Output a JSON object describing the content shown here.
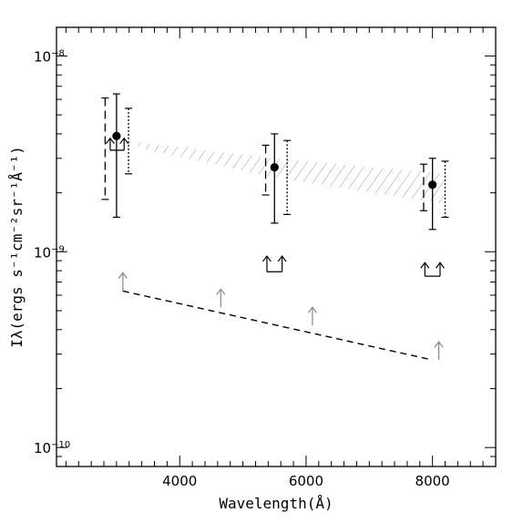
{
  "chart_data": {
    "type": "scatter",
    "title": "",
    "xlabel": "Wavelength(Å)",
    "ylabel": "Iλ(ergs s⁻¹cm⁻²sr⁻¹Å⁻¹)",
    "xlim": [
      2050,
      9000
    ],
    "ylim": [
      8e-11,
      1.4e-08
    ],
    "y_scale": "log",
    "grid": false,
    "legend": "none",
    "x_ticks": [
      {
        "value": 4000,
        "label": "4000"
      },
      {
        "value": 6000,
        "label": "6000"
      },
      {
        "value": 8000,
        "label": "8000"
      }
    ],
    "y_ticks": [
      {
        "value": 1e-08,
        "label": "10",
        "exp": "−8"
      },
      {
        "value": 1e-09,
        "label": "10",
        "exp": "−9"
      },
      {
        "value": 1e-10,
        "label": "10",
        "exp": "−10"
      }
    ],
    "series": [
      {
        "style": "filled-circle with solid error bar",
        "color": "#000000",
        "points": [
          {
            "x": 3000,
            "y": 3.9e-09,
            "ylow": 1.5e-09,
            "yhigh": 6.4e-09
          },
          {
            "x": 5500,
            "y": 2.7e-09,
            "ylow": 1.4e-09,
            "yhigh": 4e-09
          },
          {
            "x": 8000,
            "y": 2.2e-09,
            "ylow": 1.3e-09,
            "yhigh": 3e-09
          }
        ]
      },
      {
        "style": "dashed error bar",
        "color": "#000000",
        "points": [
          {
            "x": 2820,
            "ylow": 1.85e-09,
            "yhigh": 6.1e-09
          },
          {
            "x": 5360,
            "ylow": 1.95e-09,
            "yhigh": 3.5e-09
          },
          {
            "x": 7860,
            "ylow": 1.62e-09,
            "yhigh": 2.8e-09
          }
        ]
      },
      {
        "style": "dotted error bar",
        "color": "#000000",
        "points": [
          {
            "x": 3190,
            "ylow": 2.5e-09,
            "yhigh": 5.4e-09
          },
          {
            "x": 5700,
            "ylow": 1.55e-09,
            "yhigh": 3.7e-09
          },
          {
            "x": 8200,
            "ylow": 1.5e-09,
            "yhigh": 2.9e-09
          }
        ]
      },
      {
        "style": "lower-limit bracket (two upward arrows)",
        "color": "#000000",
        "points": [
          {
            "x1": 2900,
            "x2": 3120,
            "y": 3.3e-09,
            "y_arrow_tip": 3.8e-09
          },
          {
            "x1": 5380,
            "x2": 5620,
            "y": 7.9e-10,
            "y_arrow_tip": 9.5e-10
          },
          {
            "x1": 7880,
            "x2": 8120,
            "y": 7.5e-10,
            "y_arrow_tip": 8.8e-10
          }
        ]
      },
      {
        "style": "grey lower-limit arrows",
        "color": "#888888",
        "points": [
          {
            "x": 3100,
            "y": 6.3e-10
          },
          {
            "x": 4650,
            "y": 5.2e-10
          },
          {
            "x": 6100,
            "y": 4.2e-10
          },
          {
            "x": 8100,
            "y": 2.8e-10
          }
        ]
      },
      {
        "style": "dashed line",
        "color": "#000000",
        "points": [
          {
            "x": 3100,
            "y": 6.3e-10
          },
          {
            "x": 8000,
            "y": 2.8e-10
          }
        ]
      },
      {
        "style": "hatched band",
        "color": "#888888",
        "upper": [
          {
            "x": 3100,
            "y": 3.7e-09
          },
          {
            "x": 5500,
            "y": 3e-09
          },
          {
            "x": 8200,
            "y": 2.5e-09
          }
        ],
        "lower": [
          {
            "x": 3500,
            "y": 3.3e-09
          },
          {
            "x": 5500,
            "y": 2.4e-09
          },
          {
            "x": 8200,
            "y": 1.75e-09
          }
        ]
      }
    ]
  }
}
